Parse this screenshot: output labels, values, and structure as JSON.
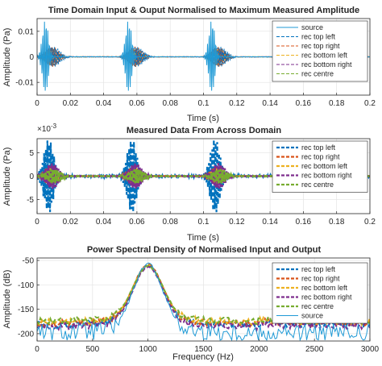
{
  "colors": {
    "source": "#1f9ad6",
    "rec_top_left": "#0072bd",
    "rec_top_right": "#d95319",
    "rec_bottom_left": "#edb120",
    "rec_bottom_right": "#7e2f8e",
    "rec_centre": "#77ac30"
  },
  "chart_data": [
    {
      "type": "line",
      "title": "Time Domain Input & Ouput Normalised to Maximum Measured Amplitude",
      "xlabel": "Time (s)",
      "ylabel": "Amplitude (Pa)",
      "xlim": [
        0,
        0.2
      ],
      "ylim": [
        -0.015,
        0.015
      ],
      "xticks": [
        "0",
        "0.02",
        "0.04",
        "0.06",
        "0.08",
        "0.1",
        "0.12",
        "0.14",
        "0.16",
        "0.18",
        "0.2"
      ],
      "yticks": [
        "0.01",
        "0",
        "-0.01"
      ],
      "grid": true,
      "legend_position": "right",
      "burst_times": [
        0.005,
        0.055,
        0.105
      ],
      "series": [
        {
          "name": "source",
          "style": "solid",
          "peak_amplitude": 0.0145
        },
        {
          "name": "rec top left",
          "style": "dashed",
          "peak_amplitude": 0.004
        },
        {
          "name": "rec top right",
          "style": "dashed",
          "peak_amplitude": 0.004
        },
        {
          "name": "rec bottom left",
          "style": "dashed",
          "peak_amplitude": 0.0035
        },
        {
          "name": "rec bottom right",
          "style": "dashed",
          "peak_amplitude": 0.0035
        },
        {
          "name": "rec centre",
          "style": "dashed",
          "peak_amplitude": 0.003
        }
      ]
    },
    {
      "type": "line",
      "title": "Measured Data From Across Domain",
      "xlabel": "Time (s)",
      "ylabel": "Amplitude (Pa)",
      "y_exponent_label": "×10",
      "y_exponent": "-3",
      "xlim": [
        0,
        0.2
      ],
      "ylim": [
        -8,
        8
      ],
      "xticks": [
        "0",
        "0.02",
        "0.04",
        "0.06",
        "0.08",
        "0.1",
        "0.12",
        "0.14",
        "0.16",
        "0.18",
        "0.2"
      ],
      "yticks": [
        "5",
        "0",
        "-5"
      ],
      "grid": true,
      "legend_position": "right",
      "burst_times": [
        0.005,
        0.055,
        0.105
      ],
      "series": [
        {
          "name": "rec top left",
          "style": "dashed",
          "peak_amplitude": 8.0
        },
        {
          "name": "rec top right",
          "style": "dashed",
          "peak_amplitude": 2.0
        },
        {
          "name": "rec bottom left",
          "style": "dashed",
          "peak_amplitude": 1.8
        },
        {
          "name": "rec bottom right",
          "style": "dashed",
          "peak_amplitude": 2.8
        },
        {
          "name": "rec centre",
          "style": "dashed",
          "peak_amplitude": 1.6
        }
      ]
    },
    {
      "type": "line",
      "title": "Power Spectral Density of Normalised Input and Output",
      "xlabel": "Frequency (Hz)",
      "ylabel": "Amplitude (dB)",
      "xlim": [
        0,
        3000
      ],
      "ylim": [
        -215,
        -45
      ],
      "xticks": [
        "0",
        "500",
        "1000",
        "1500",
        "2000",
        "2500",
        "3000"
      ],
      "yticks": [
        "-50",
        "-100",
        "-150",
        "-200"
      ],
      "grid": true,
      "legend_position": "right",
      "peak_frequency": 1000,
      "series": [
        {
          "name": "rec top left",
          "style": "dashed",
          "peak_db": -72,
          "floor_db": -185
        },
        {
          "name": "rec top right",
          "style": "dashed",
          "peak_db": -70,
          "floor_db": -182
        },
        {
          "name": "rec bottom left",
          "style": "dashed",
          "peak_db": -72,
          "floor_db": -180
        },
        {
          "name": "rec bottom right",
          "style": "dashed",
          "peak_db": -75,
          "floor_db": -188
        },
        {
          "name": "rec centre",
          "style": "dashed",
          "peak_db": -73,
          "floor_db": -178
        },
        {
          "name": "source",
          "style": "solid",
          "peak_db": -70,
          "floor_db": -200
        }
      ]
    }
  ]
}
